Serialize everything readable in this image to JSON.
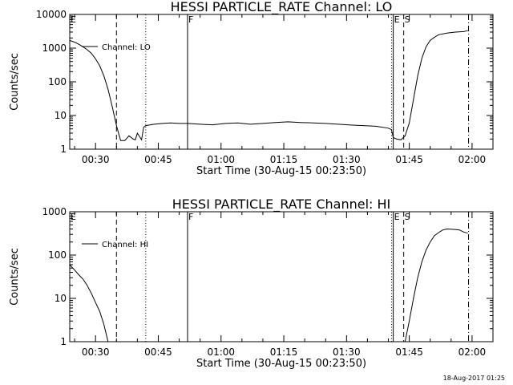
{
  "footer_text": "18-Aug-2017 01:25",
  "chart_data": [
    {
      "type": "line",
      "title": "HESSI PARTICLE_RATE Channel: LO",
      "xlabel": "Start Time (30-Aug-15 00:23:50)",
      "ylabel": "Counts/sec",
      "yscale": "log",
      "ylim": [
        1,
        10000
      ],
      "ytick_labels": [
        "1",
        "10",
        "100",
        "1000",
        "10000"
      ],
      "ytick_values": [
        1,
        10,
        100,
        1000,
        10000
      ],
      "xlim": [
        "00:23:50",
        "02:05:00"
      ],
      "xtick_labels": [
        "00:30",
        "00:45",
        "01:00",
        "01:15",
        "01:30",
        "01:45",
        "02:00"
      ],
      "legend": {
        "entries": [
          "Channel: LO"
        ],
        "placement": "top-left"
      },
      "markers": [
        {
          "label": "E",
          "time": "00:23:50",
          "style": "solid"
        },
        {
          "label": "",
          "time": "00:35:00",
          "style": "dashed"
        },
        {
          "label": "",
          "time": "00:42:00",
          "style": "dotted"
        },
        {
          "label": "F",
          "time": "00:52:00",
          "style": "solid"
        },
        {
          "label": "",
          "time": "01:40:45",
          "style": "dotted"
        },
        {
          "label": "E",
          "time": "01:41:10",
          "style": "solid"
        },
        {
          "label": "S",
          "time": "01:43:40",
          "style": "dashed"
        },
        {
          "label": "",
          "time": "01:59:10",
          "style": "dashdot"
        }
      ],
      "series": [
        {
          "name": "Channel: LO",
          "x": [
            "00:23:50",
            "00:25:00",
            "00:26:00",
            "00:27:00",
            "00:28:00",
            "00:29:00",
            "00:30:00",
            "00:31:00",
            "00:32:00",
            "00:33:00",
            "00:34:00",
            "00:35:00",
            "00:35:30",
            "00:36:00",
            "00:37:00",
            "00:38:00",
            "00:39:00",
            "00:39:30",
            "00:40:00",
            "00:41:00",
            "00:41:30",
            "00:42:00",
            "00:44:00",
            "00:46:00",
            "00:48:00",
            "00:50:00",
            "00:52:00",
            "00:55:00",
            "00:58:00",
            "01:01:00",
            "01:04:00",
            "01:07:00",
            "01:10:00",
            "01:13:00",
            "01:16:00",
            "01:19:00",
            "01:22:00",
            "01:25:00",
            "01:28:00",
            "01:31:00",
            "01:34:00",
            "01:37:00",
            "01:40:00",
            "01:40:45",
            "01:41:10",
            "01:42:00",
            "01:43:00",
            "01:44:00",
            "01:45:00",
            "01:46:00",
            "01:47:00",
            "01:48:00",
            "01:49:00",
            "01:50:00",
            "01:51:00",
            "01:52:00",
            "01:54:00",
            "01:56:00",
            "01:58:00",
            "01:59:00"
          ],
          "values": [
            1700,
            1500,
            1300,
            1100,
            900,
            700,
            480,
            300,
            150,
            60,
            18,
            5,
            3,
            1.8,
            1.8,
            2.5,
            2,
            1.9,
            3,
            1.9,
            4.5,
            5,
            5.5,
            5.8,
            6,
            5.8,
            5.8,
            5.5,
            5.3,
            5.8,
            6,
            5.5,
            5.8,
            6.2,
            6.5,
            6.2,
            6,
            5.8,
            5.5,
            5.2,
            5,
            4.8,
            4.2,
            3.8,
            2.2,
            2,
            1.9,
            2.5,
            6,
            30,
            150,
            500,
            1100,
            1700,
            2100,
            2500,
            2800,
            3000,
            3100,
            3300
          ]
        }
      ]
    },
    {
      "type": "line",
      "title": "HESSI PARTICLE_RATE Channel: HI",
      "xlabel": "Start Time (30-Aug-15 00:23:50)",
      "ylabel": "Counts/sec",
      "yscale": "log",
      "ylim": [
        1,
        1000
      ],
      "ytick_labels": [
        "1",
        "10",
        "100",
        "1000"
      ],
      "ytick_values": [
        1,
        10,
        100,
        1000
      ],
      "xlim": [
        "00:23:50",
        "02:05:00"
      ],
      "xtick_labels": [
        "00:30",
        "00:45",
        "01:00",
        "01:15",
        "01:30",
        "01:45",
        "02:00"
      ],
      "legend": {
        "entries": [
          "Channel: HI"
        ],
        "placement": "top-left"
      },
      "markers": [
        {
          "label": "E",
          "time": "00:23:50",
          "style": "solid"
        },
        {
          "label": "",
          "time": "00:35:00",
          "style": "dashed"
        },
        {
          "label": "",
          "time": "00:42:00",
          "style": "dotted"
        },
        {
          "label": "F",
          "time": "00:52:00",
          "style": "solid"
        },
        {
          "label": "",
          "time": "01:40:45",
          "style": "dotted"
        },
        {
          "label": "E",
          "time": "01:41:10",
          "style": "solid"
        },
        {
          "label": "S",
          "time": "01:43:40",
          "style": "dashed"
        },
        {
          "label": "",
          "time": "01:59:10",
          "style": "dashdot"
        }
      ],
      "series": [
        {
          "name": "Channel: HI",
          "x": [
            "00:23:50",
            "00:25:00",
            "00:26:00",
            "00:27:00",
            "00:28:00",
            "00:29:00",
            "00:30:00",
            "00:31:00",
            "00:32:00",
            "00:33:00",
            "01:44:00",
            "01:45:00",
            "01:46:00",
            "01:47:00",
            "01:48:00",
            "01:49:00",
            "01:50:00",
            "01:51:00",
            "01:52:00",
            "01:53:00",
            "01:54:00",
            "01:55:00",
            "01:56:00",
            "01:57:00",
            "01:58:00",
            "01:59:00"
          ],
          "values": [
            60,
            45,
            35,
            28,
            20,
            13,
            8,
            5,
            2.5,
            1,
            1,
            3,
            10,
            30,
            70,
            130,
            200,
            280,
            330,
            380,
            400,
            395,
            390,
            380,
            340,
            320
          ]
        }
      ]
    }
  ]
}
